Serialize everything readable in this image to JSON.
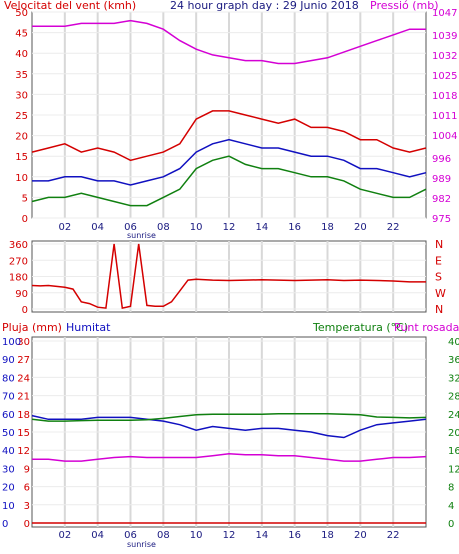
{
  "panel1": {
    "title_left": "Velocitat del vent (kmh)",
    "title_center": "24 hour graph day : 29 Junio 2018",
    "title_right": "Pressió (mb)",
    "sunrise": "sunrise",
    "colors": {
      "left": "#d40000",
      "right": "#d400d4",
      "center": "#1a1a80"
    }
  },
  "panel2": {
    "compass": [
      "N",
      "W",
      "S",
      "E",
      "N"
    ],
    "colors": {
      "axis": "#d40000"
    }
  },
  "panel3": {
    "title_left": "Pluja (mm)",
    "title_humidity": "Humitat",
    "title_temp": "Temperatura (°C)",
    "title_dew": "Punt rosada",
    "sunrise": "sunrise",
    "colors": {
      "rain": "#d40000",
      "humidity": "#1010c0",
      "temp": "#108010",
      "dew": "#d400d4"
    }
  },
  "chart_data": [
    {
      "type": "line",
      "title": "24 hour graph day : 29 Junio 2018",
      "ylabel": "Velocitat del vent (kmh)",
      "ylabel_right": "Pressió (mb)",
      "ylim": [
        0,
        50
      ],
      "ylim_right": [
        975,
        1047
      ],
      "y_ticks": [
        0,
        5,
        10,
        15,
        20,
        25,
        30,
        35,
        40,
        45,
        50
      ],
      "y_ticks_right": [
        975,
        982,
        989,
        996,
        1004,
        1011,
        1018,
        1025,
        1032,
        1039,
        1047
      ],
      "x_ticks": [
        "02",
        "04",
        "06",
        "08",
        "10",
        "12",
        "14",
        "16",
        "18",
        "20",
        "22"
      ],
      "x": [
        0,
        1,
        2,
        3,
        4,
        5,
        6,
        7,
        8,
        9,
        10,
        11,
        12,
        13,
        14,
        15,
        16,
        17,
        18,
        19,
        20,
        21,
        22,
        23,
        24
      ],
      "annotation": "sunrise",
      "series": [
        {
          "name": "Velocitat del vent",
          "color": "#d40000",
          "values": [
            16,
            17,
            18,
            16,
            17,
            16,
            14,
            15,
            16,
            18,
            24,
            26,
            26,
            25,
            24,
            23,
            24,
            22,
            22,
            21,
            19,
            19,
            17,
            16,
            17
          ]
        },
        {
          "name": "Pressió",
          "color": "#d400d4",
          "values": [
            1042,
            1042,
            1042,
            1043,
            1043,
            1043,
            1044,
            1043,
            1041,
            1037,
            1034,
            1032,
            1031,
            1030,
            1030,
            1029,
            1029,
            1030,
            1031,
            1033,
            1035,
            1037,
            1039,
            1041,
            1041
          ]
        },
        {
          "values": [
            9,
            9,
            10,
            10,
            9,
            9,
            8,
            9,
            10,
            12,
            16,
            18,
            19,
            18,
            17,
            17,
            16,
            15,
            15,
            14,
            12,
            12,
            11,
            10,
            11
          ]
        },
        {
          "values": [
            4,
            5,
            5,
            6,
            5,
            4,
            3,
            3,
            5,
            7,
            12,
            14,
            15,
            13,
            12,
            12,
            11,
            10,
            10,
            9,
            7,
            6,
            5,
            5,
            7
          ]
        }
      ]
    },
    {
      "type": "line",
      "ylim": [
        0,
        360
      ],
      "y_ticks": [
        0,
        90,
        180,
        270,
        360
      ],
      "y_ticks_right": [
        "N",
        "W",
        "S",
        "E",
        "N"
      ],
      "x": [
        0,
        0.5,
        1,
        1.5,
        2,
        2.5,
        3,
        3.5,
        4,
        4.5,
        5,
        5.5,
        6,
        6.5,
        7,
        7.5,
        8,
        8.5,
        9,
        9.5,
        10,
        11,
        12,
        13,
        14,
        15,
        16,
        17,
        18,
        19,
        20,
        21,
        22,
        23,
        24
      ],
      "series": [
        {
          "color": "#d40000",
          "values": [
            130,
            128,
            130,
            125,
            120,
            110,
            40,
            30,
            10,
            5,
            360,
            5,
            15,
            360,
            20,
            15,
            15,
            40,
            100,
            160,
            165,
            160,
            158,
            160,
            162,
            160,
            158,
            160,
            162,
            158,
            160,
            158,
            155,
            150,
            150
          ]
        }
      ]
    },
    {
      "type": "line",
      "ylabel": "Pluja (mm)",
      "ylim": [
        0,
        30
      ],
      "y_ticks_rain": [
        0,
        3,
        6,
        9,
        12,
        15,
        18,
        21,
        24,
        27,
        30
      ],
      "y_ticks_humidity": [
        0,
        10,
        20,
        30,
        40,
        50,
        60,
        70,
        80,
        90,
        100
      ],
      "y_ticks_temp": [
        0,
        4,
        8,
        12,
        16,
        20,
        24,
        28,
        32,
        36,
        40
      ],
      "x_ticks": [
        "02",
        "04",
        "06",
        "08",
        "10",
        "12",
        "14",
        "16",
        "18",
        "20",
        "22"
      ],
      "x": [
        0,
        1,
        2,
        3,
        4,
        5,
        6,
        7,
        8,
        9,
        10,
        11,
        12,
        13,
        14,
        15,
        16,
        17,
        18,
        19,
        20,
        21,
        22,
        23,
        24
      ],
      "annotation": "sunrise",
      "series": [
        {
          "name": "Pluja (mm)",
          "color": "#d40000",
          "values": [
            0,
            0,
            0,
            0,
            0,
            0,
            0,
            0,
            0,
            0,
            0,
            0,
            0,
            0,
            0,
            0,
            0,
            0,
            0,
            0,
            0,
            0,
            0,
            0,
            0
          ]
        },
        {
          "name": "Humitat",
          "color": "#1010c0",
          "values": [
            59,
            57,
            57,
            57,
            58,
            58,
            58,
            57,
            56,
            54,
            51,
            53,
            52,
            51,
            52,
            52,
            51,
            50,
            48,
            47,
            51,
            54,
            55,
            56,
            57
          ]
        },
        {
          "name": "Temperatura (°C)",
          "color": "#108010",
          "values": [
            22.8,
            22.4,
            22.4,
            22.5,
            22.6,
            22.6,
            22.6,
            22.7,
            23.0,
            23.4,
            23.8,
            23.9,
            23.9,
            23.9,
            23.9,
            24.0,
            24.0,
            24.0,
            24.0,
            23.9,
            23.8,
            23.3,
            23.2,
            23.1,
            23.2
          ]
        },
        {
          "name": "Punt rosada",
          "color": "#d400d4",
          "values": [
            14.0,
            14.0,
            13.6,
            13.6,
            14.0,
            14.4,
            14.6,
            14.4,
            14.4,
            14.4,
            14.4,
            14.8,
            15.2,
            15.0,
            15.0,
            14.8,
            14.8,
            14.4,
            14.0,
            13.6,
            13.6,
            14.0,
            14.4,
            14.4,
            14.6
          ]
        }
      ]
    }
  ]
}
